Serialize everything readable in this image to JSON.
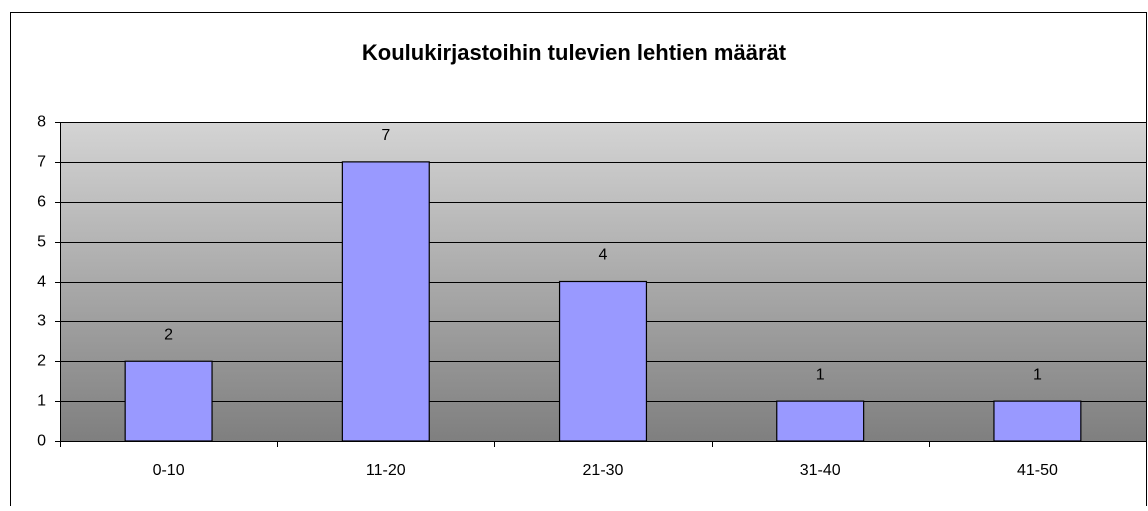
{
  "chart_data": {
    "type": "bar",
    "title": "Koulukirjastoihin tulevien lehtien määrät",
    "categories": [
      "0-10",
      "11-20",
      "21-30",
      "31-40",
      "41-50"
    ],
    "values": [
      2,
      7,
      4,
      1,
      1
    ],
    "color": "#9999ff",
    "ylim": [
      0,
      8
    ],
    "yticks": [
      0,
      1,
      2,
      3,
      4,
      5,
      6,
      7,
      8
    ],
    "grid": true,
    "data_labels": true
  }
}
